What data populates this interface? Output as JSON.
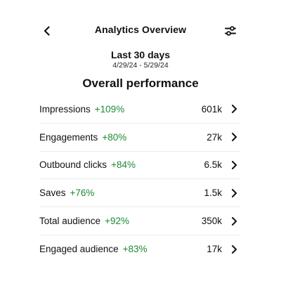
{
  "header": {
    "title": "Analytics Overview",
    "back_icon": "chevron-left-icon",
    "filter_icon": "sliders-icon"
  },
  "date_range": {
    "label": "Last 30 days",
    "dates": "4/29/24 - 5/29/24"
  },
  "section": {
    "title": "Overall performance"
  },
  "metrics": [
    {
      "name": "Impressions",
      "change": "+109%",
      "value": "601k"
    },
    {
      "name": "Engagements",
      "change": "+80%",
      "value": "27k"
    },
    {
      "name": "Outbound clicks",
      "change": "+84%",
      "value": "6.5k"
    },
    {
      "name": "Saves",
      "change": "+76%",
      "value": "1.5k"
    },
    {
      "name": "Total audience",
      "change": "+92%",
      "value": "350k"
    },
    {
      "name": "Engaged audience",
      "change": "+83%",
      "value": "17k"
    }
  ],
  "colors": {
    "positive_change": "#1f8a34",
    "text": "#111111",
    "divider": "#ececec"
  }
}
